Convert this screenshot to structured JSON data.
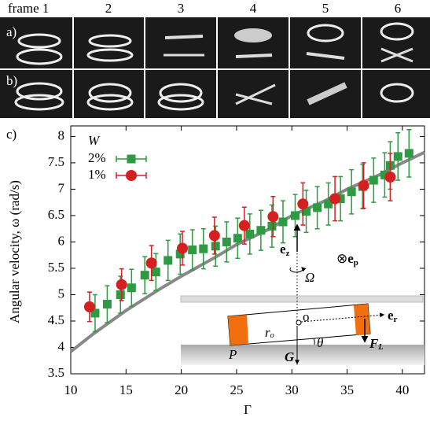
{
  "frames": [
    "frame 1",
    "2",
    "3",
    "4",
    "5",
    "6"
  ],
  "panels": {
    "a": "a)",
    "b": "b)"
  },
  "chart_data": {
    "type": "scatter",
    "panel_label": "c)",
    "x_label": "Γ",
    "y_label": "Angular velocity, ω (rad/s)",
    "xlim": [
      10,
      42
    ],
    "ylim": [
      3.5,
      8.2
    ],
    "xticks": [
      10,
      15,
      20,
      25,
      30,
      35,
      40
    ],
    "yticks": [
      3.5,
      4,
      4.5,
      5,
      5.5,
      6,
      6.5,
      7,
      7.5,
      8
    ],
    "legend_title": "W",
    "legend": "upper left",
    "series": [
      {
        "name": "2%",
        "color": "#2e9a44",
        "marker": "square",
        "x": [
          12.2,
          13.3,
          14.5,
          15.5,
          16.7,
          17.7,
          18.8,
          19.9,
          21,
          22,
          23.1,
          24.1,
          25.1,
          26.2,
          27.2,
          28.2,
          29.2,
          30.3,
          31.3,
          32.3,
          33.3,
          34.4,
          35.4,
          36.4,
          37.4,
          38.4,
          38.9,
          39.6,
          40.6
        ],
        "values": [
          4.65,
          4.82,
          5.0,
          5.13,
          5.37,
          5.43,
          5.65,
          5.77,
          5.85,
          5.87,
          5.92,
          6.0,
          6.07,
          6.15,
          6.22,
          6.3,
          6.38,
          6.5,
          6.58,
          6.65,
          6.72,
          6.82,
          6.95,
          7.05,
          7.17,
          7.27,
          7.45,
          7.62,
          7.68
        ],
        "errors": [
          0.35,
          0.35,
          0.35,
          0.35,
          0.35,
          0.35,
          0.38,
          0.38,
          0.38,
          0.38,
          0.38,
          0.38,
          0.38,
          0.38,
          0.38,
          0.4,
          0.4,
          0.4,
          0.4,
          0.4,
          0.4,
          0.42,
          0.42,
          0.42,
          0.42,
          0.42,
          0.45,
          0.45,
          0.45
        ]
      },
      {
        "name": "1%",
        "color": "#d42020",
        "marker": "circle",
        "x": [
          11.7,
          14.6,
          17.3,
          20.1,
          23,
          25.7,
          28.3,
          31,
          33.9,
          36.5,
          38.9
        ],
        "values": [
          4.77,
          5.19,
          5.6,
          5.88,
          6.12,
          6.31,
          6.48,
          6.72,
          6.82,
          7.07,
          7.23
        ],
        "errors": [
          0.28,
          0.3,
          0.33,
          0.32,
          0.35,
          0.35,
          0.38,
          0.4,
          0.42,
          0.43,
          0.45
        ]
      }
    ],
    "fit": {
      "color": "#888888",
      "x": [
        10,
        12,
        15,
        18,
        20,
        23,
        25,
        28,
        30,
        33,
        35,
        38,
        40,
        42
      ],
      "values": [
        3.92,
        4.25,
        4.7,
        5.1,
        5.35,
        5.7,
        5.95,
        6.25,
        6.5,
        6.78,
        7.0,
        7.28,
        7.5,
        7.7
      ]
    },
    "inset": {
      "ez": {
        "main": "e",
        "sub": "z"
      },
      "omega": "Ω",
      "ep": {
        "sym": "⊗",
        "main": "e",
        "sub": "p"
      },
      "er": {
        "main": "e",
        "sub": "r"
      },
      "ro": {
        "main": "r",
        "sub": "o"
      },
      "o": "o",
      "fl": {
        "main": "F",
        "sub": "L"
      },
      "p": "P",
      "g": "G",
      "theta": "θ"
    }
  }
}
